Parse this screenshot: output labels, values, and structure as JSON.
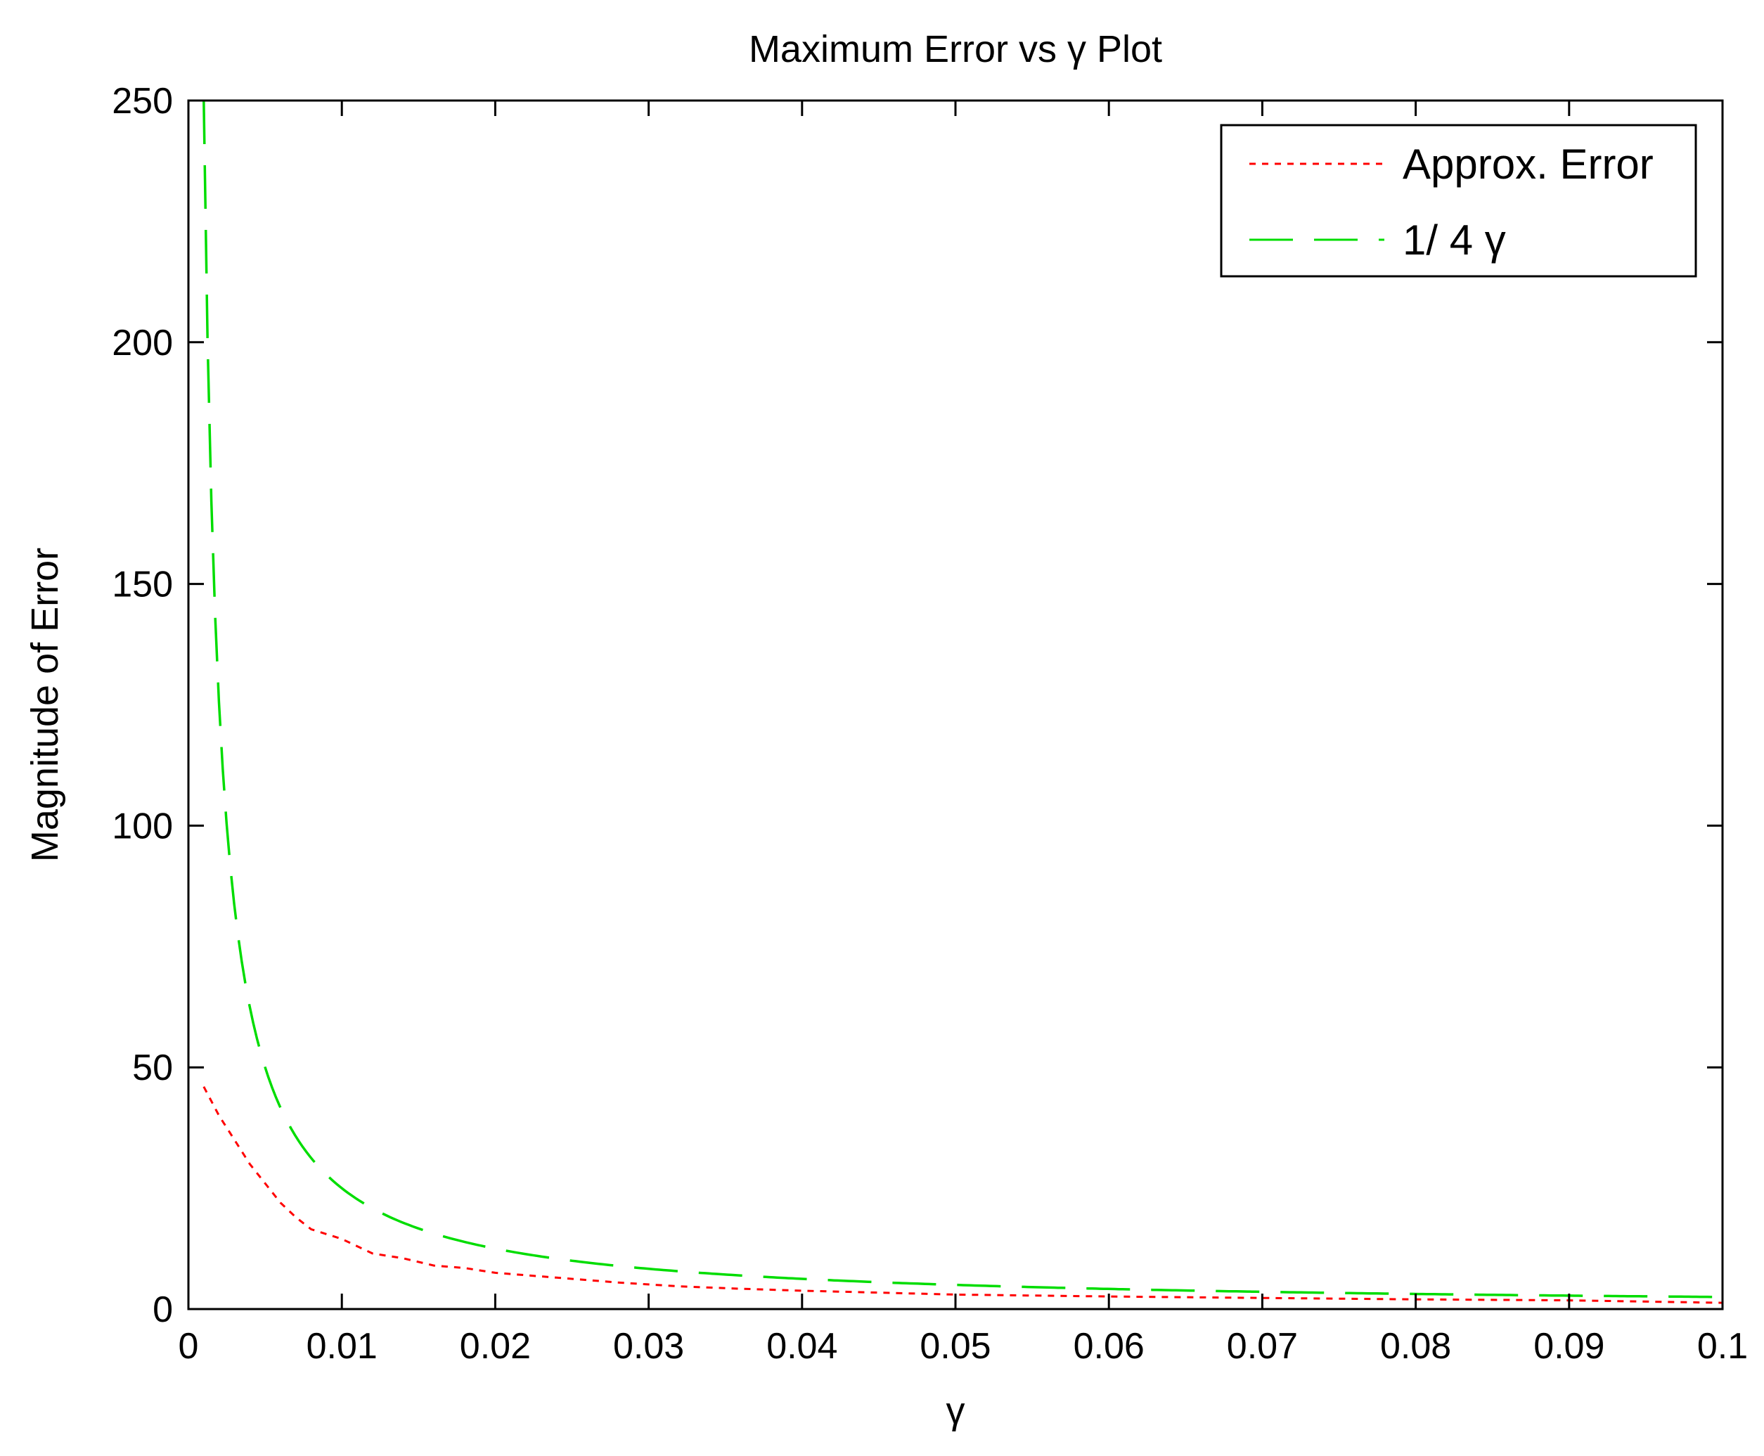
{
  "chart_data": {
    "type": "line",
    "title": "Maximum Error vs γ Plot",
    "xlabel": "γ",
    "ylabel": "Magnitude of Error",
    "xlim": [
      0,
      0.1
    ],
    "ylim": [
      0,
      250
    ],
    "x_ticks": [
      "0",
      "0.01",
      "0.02",
      "0.03",
      "0.04",
      "0.05",
      "0.06",
      "0.07",
      "0.08",
      "0.09",
      "0.1"
    ],
    "y_ticks": [
      "0",
      "50",
      "100",
      "150",
      "200",
      "250"
    ],
    "grid": false,
    "legend": "top-right",
    "series": [
      {
        "name": "Approx. Error",
        "color": "#ff0000",
        "dash": "dotted",
        "points": [
          [
            0.001,
            46
          ],
          [
            0.002,
            40
          ],
          [
            0.003,
            35
          ],
          [
            0.004,
            30
          ],
          [
            0.005,
            26
          ],
          [
            0.006,
            22
          ],
          [
            0.007,
            19
          ],
          [
            0.008,
            16.5
          ],
          [
            0.009,
            15.5
          ],
          [
            0.01,
            14.5
          ],
          [
            0.011,
            13
          ],
          [
            0.012,
            11.5
          ],
          [
            0.014,
            10.5
          ],
          [
            0.016,
            9
          ],
          [
            0.018,
            8.5
          ],
          [
            0.02,
            7.5
          ],
          [
            0.024,
            6.5
          ],
          [
            0.028,
            5.5
          ],
          [
            0.032,
            4.7
          ],
          [
            0.036,
            4.2
          ],
          [
            0.04,
            3.8
          ],
          [
            0.045,
            3.4
          ],
          [
            0.05,
            3.0
          ],
          [
            0.06,
            2.6
          ],
          [
            0.07,
            2.3
          ],
          [
            0.08,
            2.0
          ],
          [
            0.09,
            1.8
          ],
          [
            0.1,
            1.3
          ]
        ]
      },
      {
        "name": "1/ 4 γ",
        "color": "#00dd00",
        "dash": "dashed",
        "formula": "1/(4x)",
        "x_start": 0.001,
        "x_end": 0.1
      }
    ]
  }
}
